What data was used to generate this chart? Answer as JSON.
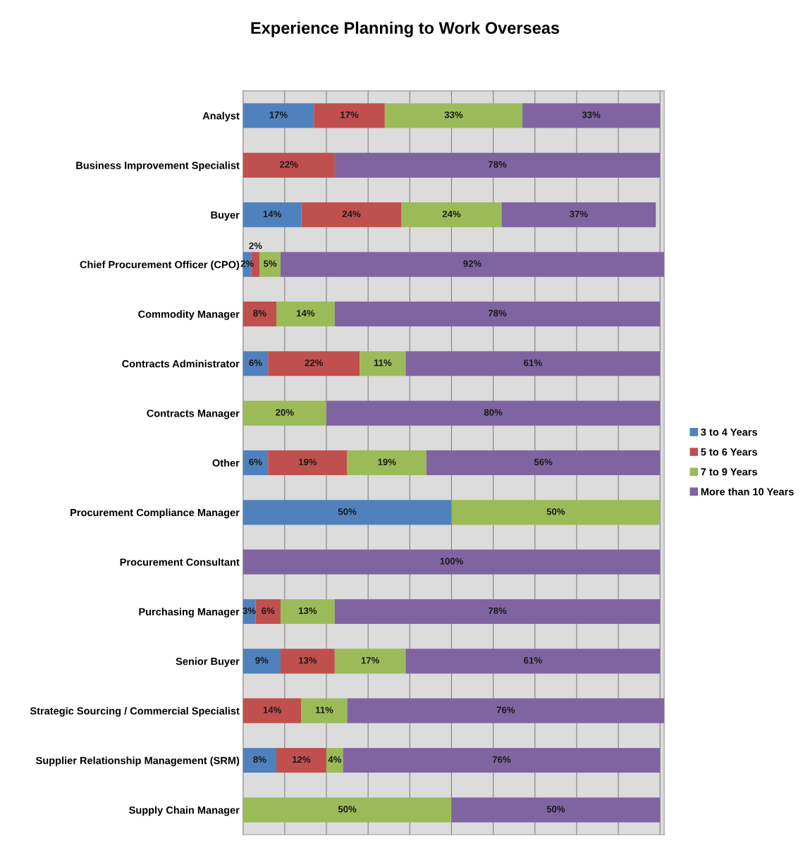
{
  "chart_data": {
    "type": "bar",
    "orientation": "horizontal",
    "stacked": true,
    "title": "Experience Planning to Work Overseas",
    "categories": [
      "Analyst",
      "Business Improvement Specialist",
      "Buyer",
      "Chief Procurement Officer (CPO)",
      "Commodity Manager",
      "Contracts Administrator",
      "Contracts Manager",
      "Other",
      "Procurement Compliance Manager",
      "Procurement Consultant",
      "Purchasing Manager",
      "Senior Buyer",
      "Strategic Sourcing / Commercial Specialist",
      "Supplier Relationship Management (SRM)",
      "Supply Chain Manager"
    ],
    "series": [
      {
        "name": "3 to 4 Years",
        "color": "#4f81bd",
        "values": [
          17,
          null,
          14,
          2,
          null,
          6,
          null,
          6,
          50,
          null,
          3,
          9,
          null,
          8,
          null
        ],
        "value_labels": [
          "17%",
          null,
          "14%",
          "2%",
          null,
          "6%",
          null,
          "6%",
          "50%",
          null,
          "3%",
          "9%",
          null,
          "8%",
          null
        ]
      },
      {
        "name": "5 to 6 Years",
        "color": "#c0504d",
        "values": [
          17,
          22,
          24,
          2,
          8,
          22,
          null,
          19,
          null,
          null,
          6,
          13,
          14,
          12,
          null
        ],
        "value_labels": [
          "17%",
          "22%",
          "24%",
          "2%",
          "8%",
          "22%",
          null,
          "19%",
          null,
          null,
          "6%",
          "13%",
          "14%",
          "12%",
          null
        ]
      },
      {
        "name": "7 to 9 Years",
        "color": "#9bbb59",
        "values": [
          33,
          null,
          24,
          5,
          14,
          11,
          20,
          19,
          50,
          null,
          13,
          17,
          11,
          4,
          50
        ],
        "value_labels": [
          "33%",
          null,
          "24%",
          "5%",
          "14%",
          "11%",
          "20%",
          "19%",
          "50%",
          null,
          "13%",
          "17%",
          "11%",
          "4%",
          "50%"
        ]
      },
      {
        "name": "More than 10 Years",
        "color": "#8064a2",
        "values": [
          33,
          78,
          37,
          92,
          78,
          61,
          80,
          56,
          null,
          100,
          78,
          61,
          76,
          76,
          50
        ],
        "value_labels": [
          "33%",
          "78%",
          "37%",
          "92%",
          "78%",
          "61%",
          "80%",
          "56%",
          null,
          "100%",
          "78%",
          "61%",
          "76%",
          "76%",
          "50%"
        ]
      }
    ],
    "xlim": [
      0,
      101
    ],
    "xticks": [
      {
        "value": 0,
        "label": null
      },
      {
        "value": 10,
        "label": null
      },
      {
        "value": 20,
        "label": null
      },
      {
        "value": 30,
        "label": null
      },
      {
        "value": 40,
        "label": null
      },
      {
        "value": 50,
        "label": null
      },
      {
        "value": 60,
        "label": null
      },
      {
        "value": 70,
        "label": null
      },
      {
        "value": 80,
        "label": null
      },
      {
        "value": 90,
        "label": null
      },
      {
        "value": 100,
        "label": null
      }
    ],
    "tick_labels": "y",
    "grid": "x",
    "legend": "right"
  }
}
